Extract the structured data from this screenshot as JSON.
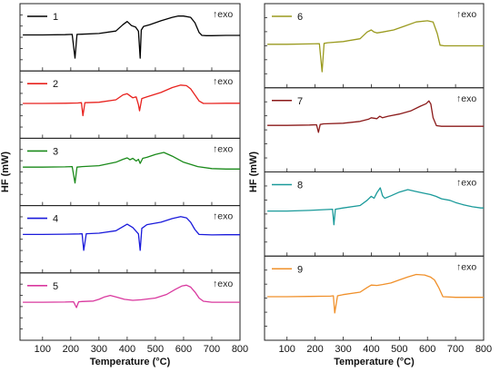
{
  "chart_data": [
    {
      "panel": "left",
      "type": "line",
      "xlabel": "Temperature (°C)",
      "ylabel": "HF (mW)",
      "xlim": [
        20,
        800
      ],
      "xticks": [
        100,
        200,
        300,
        400,
        500,
        600,
        700,
        800
      ],
      "xtick_labels": [
        "100",
        "200",
        "300",
        "400",
        "500",
        "600",
        "700",
        "800"
      ],
      "grid": false,
      "legend_placement": "top-left of each subplot",
      "annotation": "↑exo",
      "series": [
        {
          "name": "1",
          "color": "#000000",
          "x": [
            30,
            100,
            180,
            205,
            215,
            222,
            240,
            300,
            360,
            385,
            400,
            415,
            430,
            440,
            446,
            450,
            458,
            480,
            520,
            560,
            580,
            600,
            625,
            640,
            655,
            665,
            680,
            700,
            750,
            800
          ],
          "y": [
            0.2,
            0.2,
            0.21,
            0.22,
            -0.75,
            0.22,
            0.23,
            0.26,
            0.36,
            0.62,
            0.75,
            0.58,
            0.52,
            0.35,
            -0.75,
            0.4,
            0.55,
            0.62,
            0.78,
            0.92,
            0.97,
            0.97,
            0.92,
            0.7,
            0.3,
            0.18,
            0.17,
            0.17,
            0.18,
            0.18
          ]
        },
        {
          "name": "2",
          "color": "#e8211d",
          "x": [
            30,
            100,
            180,
            225,
            238,
            243,
            250,
            300,
            360,
            385,
            400,
            420,
            432,
            440,
            444,
            452,
            470,
            520,
            560,
            590,
            610,
            625,
            640,
            655,
            670,
            700,
            750,
            800
          ],
          "y": [
            0.15,
            0.15,
            0.16,
            0.17,
            0.18,
            -0.35,
            0.18,
            0.2,
            0.3,
            0.5,
            0.55,
            0.38,
            0.42,
            0.1,
            -0.15,
            0.35,
            0.42,
            0.6,
            0.8,
            0.9,
            0.88,
            0.75,
            0.5,
            0.25,
            0.15,
            0.15,
            0.16,
            0.16
          ]
        },
        {
          "name": "3",
          "color": "#1a8a1a",
          "x": [
            30,
            100,
            180,
            205,
            215,
            222,
            240,
            300,
            360,
            385,
            400,
            410,
            420,
            432,
            440,
            446,
            455,
            470,
            500,
            530,
            560,
            600,
            650,
            700,
            750,
            800
          ],
          "y": [
            0.3,
            0.3,
            0.31,
            0.32,
            -0.35,
            0.3,
            0.32,
            0.36,
            0.5,
            0.62,
            0.68,
            0.6,
            0.66,
            0.55,
            0.62,
            0.45,
            0.66,
            0.7,
            0.82,
            0.9,
            0.75,
            0.5,
            0.32,
            0.24,
            0.22,
            0.22
          ]
        },
        {
          "name": "4",
          "color": "#1a1adb",
          "x": [
            30,
            100,
            180,
            230,
            240,
            246,
            255,
            300,
            360,
            385,
            400,
            420,
            440,
            446,
            452,
            470,
            520,
            560,
            590,
            610,
            625,
            640,
            655,
            700,
            750,
            800
          ],
          "y": [
            0.3,
            0.3,
            0.31,
            0.32,
            0.33,
            -0.35,
            0.33,
            0.35,
            0.45,
            0.62,
            0.72,
            0.58,
            0.32,
            -0.35,
            0.55,
            0.7,
            0.8,
            0.95,
            1.03,
            0.98,
            0.8,
            0.5,
            0.3,
            0.28,
            0.29,
            0.29
          ]
        },
        {
          "name": "5",
          "color": "#d9389e",
          "x": [
            30,
            100,
            180,
            210,
            220,
            228,
            240,
            280,
            300,
            320,
            340,
            360,
            390,
            420,
            450,
            500,
            540,
            570,
            595,
            610,
            625,
            640,
            655,
            670,
            700,
            750,
            800
          ],
          "y": [
            0.28,
            0.28,
            0.29,
            0.3,
            0.06,
            0.3,
            0.31,
            0.33,
            0.4,
            0.5,
            0.56,
            0.5,
            0.4,
            0.36,
            0.38,
            0.45,
            0.6,
            0.8,
            0.95,
            0.98,
            0.9,
            0.7,
            0.45,
            0.32,
            0.28,
            0.28,
            0.28
          ]
        }
      ]
    },
    {
      "panel": "right",
      "type": "line",
      "xlabel": "Temperature (°C)",
      "ylabel": "HF (mW)",
      "xlim": [
        20,
        800
      ],
      "xticks": [
        100,
        200,
        300,
        400,
        500,
        600,
        700,
        800
      ],
      "xtick_labels": [
        "100",
        "200",
        "300",
        "400",
        "500",
        "600",
        "700",
        "800"
      ],
      "grid": false,
      "legend_placement": "top-left of each subplot",
      "annotation": "↑exo",
      "series": [
        {
          "name": "6",
          "color": "#9a9a1e",
          "x": [
            30,
            100,
            180,
            215,
            225,
            232,
            245,
            300,
            360,
            385,
            400,
            410,
            420,
            440,
            480,
            520,
            560,
            600,
            620,
            635,
            645,
            660,
            700,
            750,
            800
          ],
          "y": [
            0.15,
            0.15,
            0.16,
            0.17,
            -0.75,
            0.18,
            0.2,
            0.24,
            0.33,
            0.55,
            0.62,
            0.55,
            0.52,
            0.55,
            0.62,
            0.75,
            0.88,
            0.92,
            0.88,
            0.5,
            0.12,
            0.1,
            0.1,
            0.1,
            0.1
          ]
        },
        {
          "name": "7",
          "color": "#8b1a1a",
          "x": [
            30,
            100,
            180,
            205,
            212,
            218,
            230,
            300,
            360,
            390,
            400,
            420,
            430,
            440,
            460,
            500,
            540,
            575,
            595,
            605,
            612,
            620,
            632,
            650,
            700,
            750,
            800
          ],
          "y": [
            0.25,
            0.25,
            0.26,
            0.27,
            0.02,
            0.28,
            0.3,
            0.32,
            0.38,
            0.45,
            0.5,
            0.47,
            0.55,
            0.5,
            0.55,
            0.62,
            0.72,
            0.88,
            0.96,
            1.05,
            0.95,
            0.5,
            0.24,
            0.22,
            0.22,
            0.22,
            0.22
          ]
        },
        {
          "name": "8",
          "color": "#1a9a9a",
          "x": [
            30,
            100,
            180,
            245,
            262,
            267,
            272,
            300,
            360,
            385,
            400,
            410,
            420,
            432,
            440,
            448,
            470,
            500,
            530,
            560,
            590,
            610,
            630,
            650,
            680,
            700,
            730,
            760,
            790,
            800
          ],
          "y": [
            0.2,
            0.2,
            0.22,
            0.25,
            0.26,
            -0.25,
            0.26,
            0.3,
            0.38,
            0.55,
            0.68,
            0.62,
            0.8,
            0.96,
            0.7,
            0.62,
            0.7,
            0.82,
            0.9,
            0.84,
            0.78,
            0.74,
            0.68,
            0.6,
            0.55,
            0.48,
            0.4,
            0.34,
            0.3,
            0.3
          ]
        },
        {
          "name": "9",
          "color": "#f0902a",
          "x": [
            30,
            100,
            180,
            255,
            265,
            270,
            280,
            300,
            360,
            385,
            400,
            420,
            440,
            470,
            500,
            530,
            560,
            590,
            610,
            625,
            640,
            655,
            700,
            750,
            800
          ],
          "y": [
            0.15,
            0.15,
            0.16,
            0.17,
            0.18,
            -0.38,
            0.18,
            0.22,
            0.3,
            0.45,
            0.53,
            0.52,
            0.55,
            0.6,
            0.7,
            0.8,
            0.88,
            0.86,
            0.8,
            0.7,
            0.45,
            0.15,
            0.13,
            0.13,
            0.13
          ]
        }
      ]
    }
  ]
}
